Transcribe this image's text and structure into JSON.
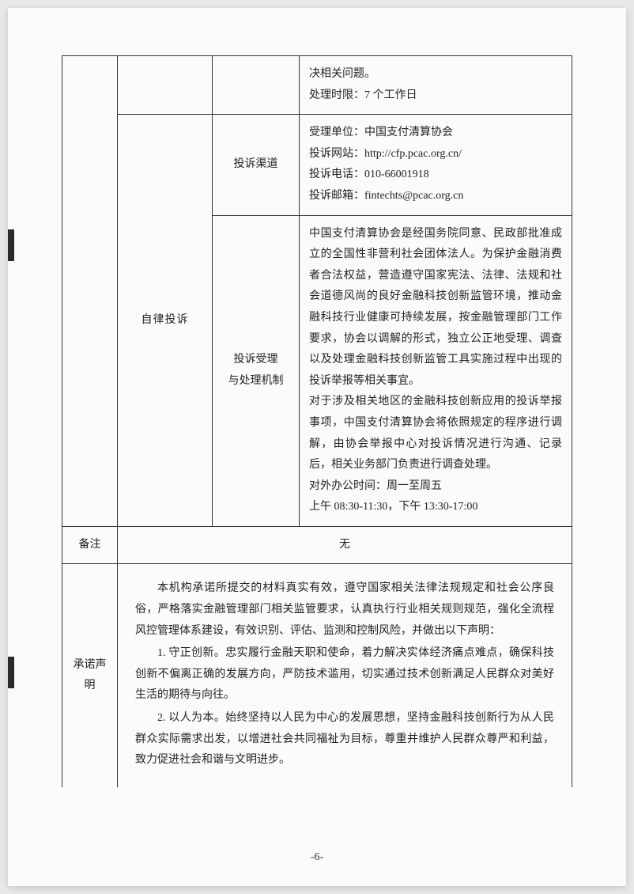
{
  "page": {
    "number": "-6-",
    "background_color": "#fbfbf9",
    "border_color": "#333333",
    "text_color": "#222222",
    "font_family": "SimSun"
  },
  "table": {
    "row1": {
      "content": "决相关问题。\n处理时限：7 个工作日"
    },
    "row2_label": "自律投诉",
    "row2a": {
      "sublabel": "投诉渠道",
      "content": "受理单位：中国支付清算协会\n投诉网站：http://cfp.pcac.org.cn/\n投诉电话：010-66001918\n投诉邮箱：fintechts@pcac.org.cn"
    },
    "row2b": {
      "sublabel": "投诉受理\n与处理机制",
      "content": "中国支付清算协会是经国务院同意、民政部批准成立的全国性非营利社会团体法人。为保护金融消费者合法权益，营造遵守国家宪法、法律、法规和社会道德风尚的良好金融科技创新监管环境，推动金融科技行业健康可持续发展，按金融管理部门工作要求，协会以调解的形式，独立公正地受理、调查以及处理金融科技创新监管工具实施过程中出现的投诉举报等相关事宜。\n对于涉及相关地区的金融科技创新应用的投诉举报事项，中国支付清算协会将依照规定的程序进行调解，由协会举报中心对投诉情况进行沟通、记录后，相关业务部门负责进行调查处理。\n对外办公时间：周一至周五\n上午 08:30-11:30，下午 13:30-17:00"
    },
    "row3": {
      "label": "备注",
      "content": "无"
    },
    "row4": {
      "label": "承诺声明",
      "intro": "本机构承诺所提交的材料真实有效，遵守国家相关法律法规规定和社会公序良俗，严格落实金融管理部门相关监管要求，认真执行行业相关规则规范，强化全流程风控管理体系建设，有效识别、评估、监测和控制风险，并做出以下声明：",
      "item1": "1. 守正创新。忠实履行金融天职和使命，着力解决实体经济痛点难点，确保科技创新不偏离正确的发展方向，严防技术滥用，切实通过技术创新满足人民群众对美好生活的期待与向往。",
      "item2": "2. 以人为本。始终坚持以人民为中心的发展思想，坚持金融科技创新行为从人民群众实际需求出发，以增进社会共同福祉为目标，尊重并维护人民群众尊严和利益，致力促进社会和谐与文明进步。"
    }
  }
}
